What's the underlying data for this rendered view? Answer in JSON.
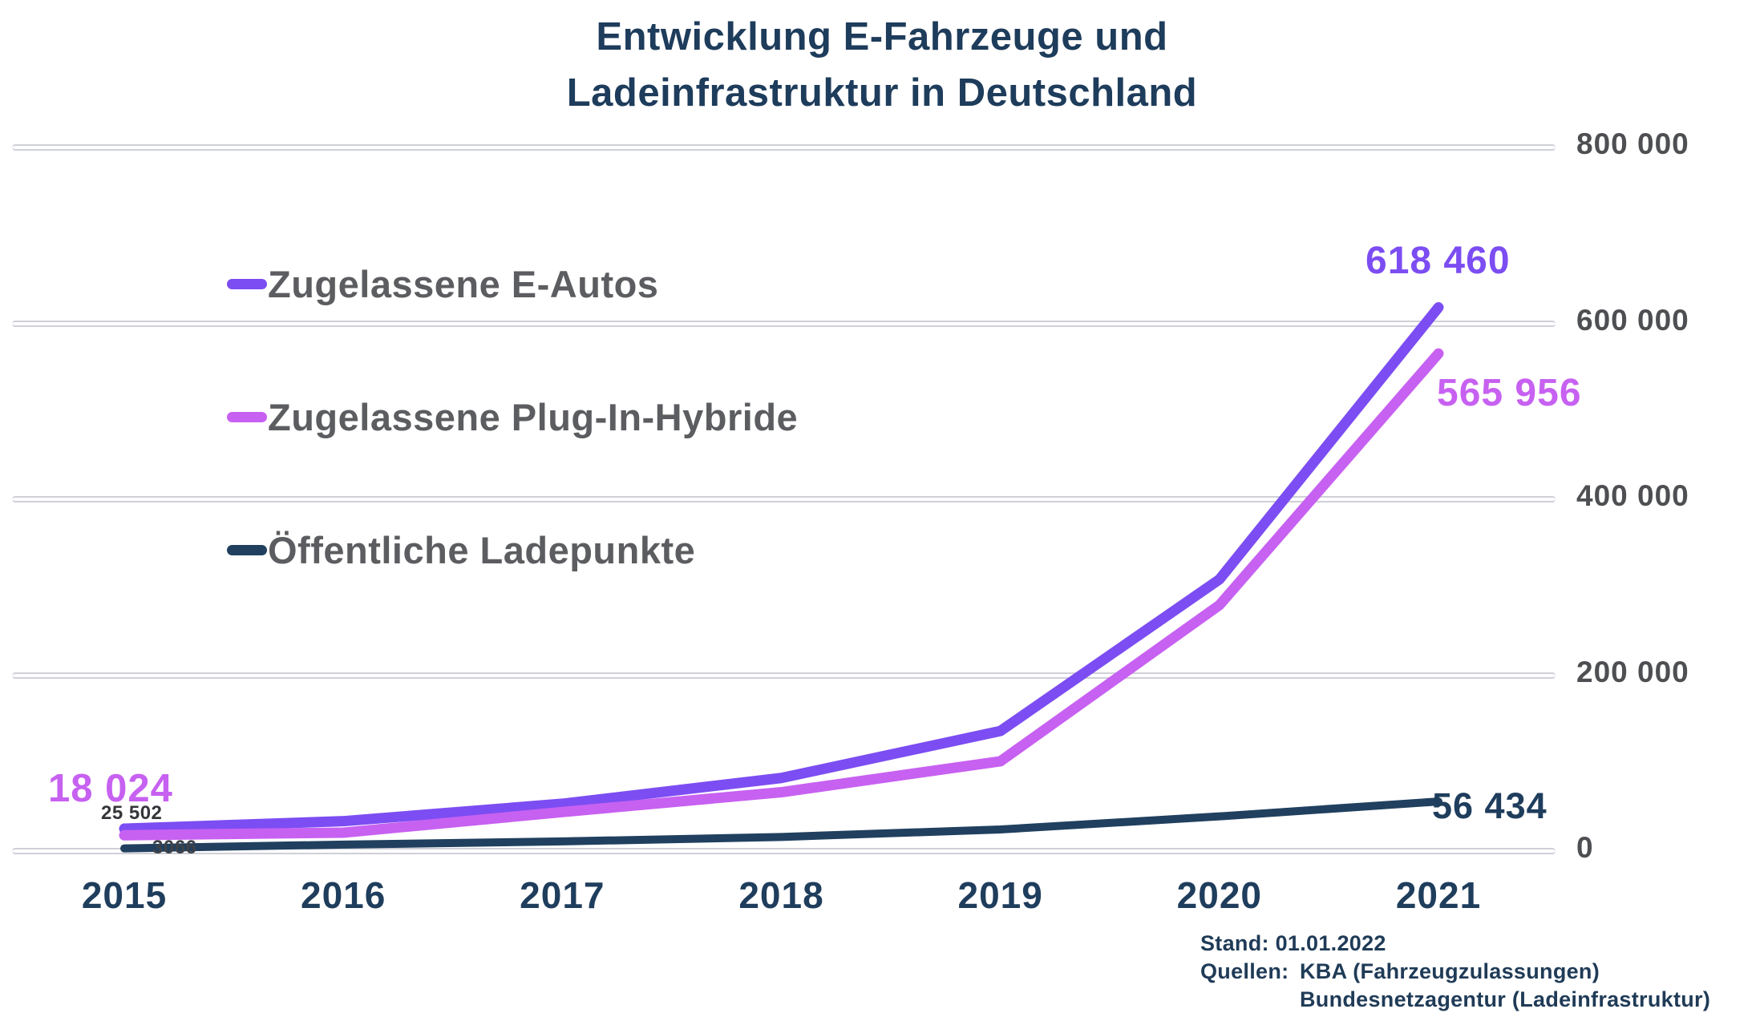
{
  "title": {
    "line1": "Entwicklung E-Fahrzeuge und",
    "line2": "Ladeinfrastruktur in Deutschland"
  },
  "colors": {
    "e_autos": "#7C4DF2",
    "plug_in_hybride": "#C761F1",
    "ladepunkte": "#21405F",
    "grid_line": "#CFD0D7",
    "axis_tick_text": "#4E4F52",
    "legend_text": "#5C5D60",
    "heading_text": "#1E3C5B"
  },
  "legend": {
    "items": [
      {
        "label": "Zugelassene E-Autos"
      },
      {
        "label": "Zugelassene Plug-In-Hybride"
      },
      {
        "label": "Öffentliche Ladepunkte"
      }
    ]
  },
  "y_axis": {
    "tick_labels": [
      "800 000",
      "600 000",
      "400 000",
      "200 000",
      "0"
    ],
    "tick_values": [
      800000,
      600000,
      400000,
      200000,
      0
    ]
  },
  "x_axis": {
    "year_labels": [
      "2015",
      "2016",
      "2017",
      "2018",
      "2019",
      "2020",
      "2021"
    ]
  },
  "annotations": {
    "e_autos_end": "618 460",
    "phev_end": "565 956",
    "phev_start": "18 024",
    "e_autos_start_small": "25 502",
    "ladepunkte_start_small": "3066",
    "ladepunkte_end": "56 434"
  },
  "footer": {
    "stand": "Stand: 01.01.2022",
    "quellen_label": "Quellen:",
    "sources": [
      "KBA (Fahrzeugzulassungen)",
      "Bundesnetzagentur (Ladeinfrastruktur)"
    ]
  },
  "chart_data": {
    "type": "line",
    "title": "Entwicklung E-Fahrzeuge und Ladeinfrastruktur in Deutschland",
    "x": [
      2015,
      2016,
      2017,
      2018,
      2019,
      2020,
      2021
    ],
    "series": [
      {
        "id": "e_autos",
        "name": "Zugelassene E-Autos",
        "color": "#7C4DF2",
        "values": [
          25502,
          34022,
          53861,
          83175,
          136617,
          309083,
          618460
        ]
      },
      {
        "id": "plug_in_hybride",
        "name": "Zugelassene Plug-In-Hybride",
        "color": "#C761F1",
        "values": [
          18024,
          20975,
          44419,
          66997,
          102175,
          279861,
          565956
        ]
      },
      {
        "id": "ladepunkte",
        "name": "Öffentliche Ladepunkte",
        "color": "#21405F",
        "values": [
          3066,
          7400,
          11000,
          16100,
          24600,
          39500,
          56434
        ]
      }
    ],
    "ylim": [
      0,
      800000
    ],
    "yticks": [
      0,
      200000,
      400000,
      600000,
      800000
    ],
    "grid": true,
    "legend_position": "upper-left-inside",
    "point_labels": [
      {
        "series": "e_autos",
        "x": 2015,
        "text": "25 502"
      },
      {
        "series": "e_autos",
        "x": 2021,
        "text": "618 460"
      },
      {
        "series": "plug_in_hybride",
        "x": 2015,
        "text": "18 024"
      },
      {
        "series": "plug_in_hybride",
        "x": 2021,
        "text": "565 956"
      },
      {
        "series": "ladepunkte",
        "x": 2015,
        "text": "3066"
      },
      {
        "series": "ladepunkte",
        "x": 2021,
        "text": "56 434"
      }
    ]
  }
}
